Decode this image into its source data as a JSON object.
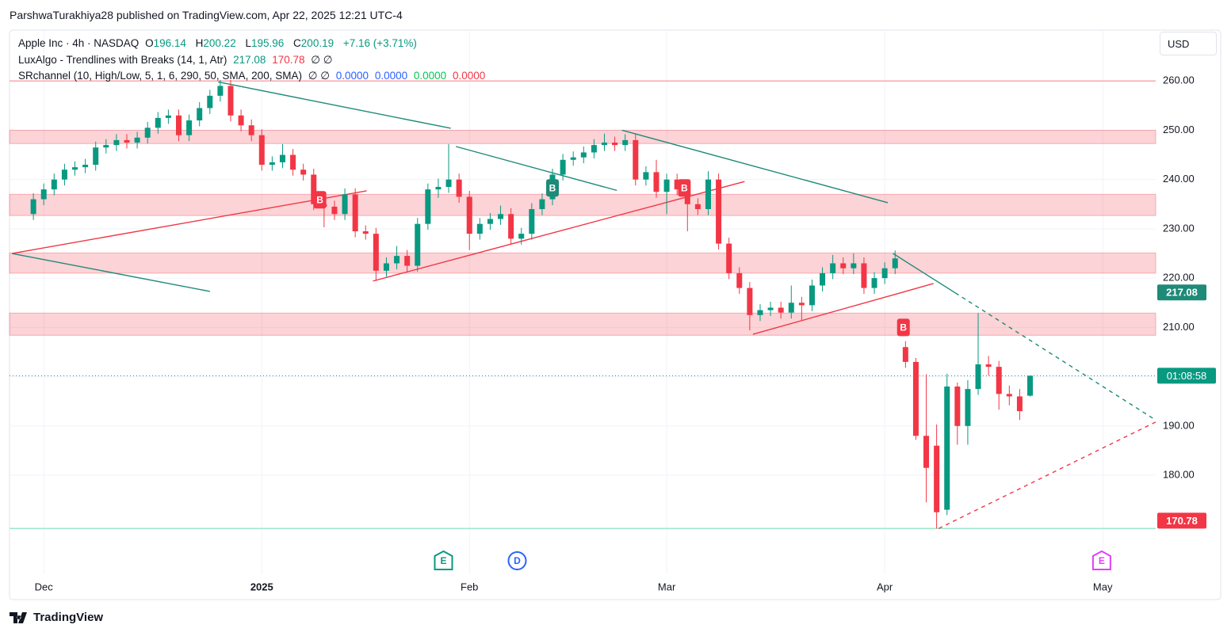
{
  "header": {
    "published": "ParshwaTurakhiya28 published on TradingView.com, Apr 22, 2025 12:21 UTC-4",
    "brand": "TradingView",
    "currency": "USD"
  },
  "legend": {
    "symbol": "Apple Inc · 4h · NASDAQ",
    "keys": [
      "O",
      "H",
      "L",
      "C"
    ],
    "change": "+7.16 (+3.71%)",
    "lux_name": "LuxAlgo - Trendlines with Breaks (14, 1, Atr)",
    "lux_na": "∅ ∅",
    "sr_name": "SRchannel (10, High/Low, 5, 1, 6, 290, 50, SMA, 200, SMA)",
    "sr_na": "∅ ∅",
    "sr_values": [
      "0.0000",
      "0.0000",
      "0.0000",
      "0.0000"
    ]
  },
  "chart_data": {
    "type": "candlestick",
    "up_color": "#089981",
    "down_color": "#f23645",
    "xlim": [
      -2.3,
      108.1
    ],
    "ylim": [
      160,
      270
    ],
    "grid": true,
    "xticks": [
      {
        "value": 1,
        "label": "Dec"
      },
      {
        "value": 22,
        "label": "2025"
      },
      {
        "value": 42,
        "label": "Feb"
      },
      {
        "value": 61,
        "label": "Mar"
      },
      {
        "value": 82,
        "label": "Apr"
      },
      {
        "value": 103,
        "label": "May"
      }
    ],
    "yticks": [
      {
        "value": 180,
        "label": "180.00"
      },
      {
        "value": 190,
        "label": "190.00"
      },
      {
        "value": 200,
        "label": "200.00"
      },
      {
        "value": 210,
        "label": "210.00"
      },
      {
        "value": 220,
        "label": "220.00"
      },
      {
        "value": 230,
        "label": "230.00"
      },
      {
        "value": 240,
        "label": "240.00"
      },
      {
        "value": 250,
        "label": "250.00"
      },
      {
        "value": 260,
        "label": "260.00"
      }
    ],
    "ohlc": {
      "open": [
        233,
        236,
        238,
        240,
        242,
        242.5,
        243,
        246.5,
        247,
        248,
        247.5,
        248.5,
        250.5,
        252.5,
        253,
        249,
        252,
        254.5,
        257,
        259,
        253,
        251,
        249,
        243,
        243.5,
        245,
        242,
        241,
        235,
        234.5,
        233,
        237,
        229.5,
        229,
        221.5,
        223,
        224.5,
        222.5,
        231,
        238,
        238.5,
        240,
        236.5,
        229,
        231,
        232,
        233,
        228,
        229,
        234,
        236,
        241,
        244,
        244.5,
        245.5,
        247,
        247.5,
        247,
        248,
        240,
        241.5,
        237.5,
        240,
        238,
        235,
        234,
        240,
        227,
        221,
        218,
        212.5,
        213.5,
        214,
        213,
        215,
        214.5,
        218.5,
        221,
        223,
        222,
        223,
        218,
        220,
        222,
        206,
        203,
        188,
        186,
        173,
        198,
        190,
        197.5,
        202.5,
        202,
        196.5,
        196,
        196.14
      ],
      "high": [
        237.2,
        239.2,
        241.2,
        243.2,
        243.7,
        244.2,
        247.7,
        248.2,
        249.2,
        249.2,
        249.7,
        251.7,
        253.7,
        254.2,
        254.2,
        253.2,
        255.7,
        258.2,
        260.2,
        260.2,
        254.2,
        252.2,
        250.2,
        244.7,
        247.2,
        246.2,
        243.2,
        242.2,
        236.2,
        235.7,
        238.2,
        238.2,
        230.7,
        230.2,
        224.2,
        226.5,
        225.7,
        232.2,
        239.2,
        240.2,
        247.2,
        241.2,
        237.7,
        232.2,
        233.2,
        234.7,
        234.2,
        230.2,
        235.2,
        237.2,
        242.2,
        245.2,
        245.7,
        246.7,
        248.2,
        249.3,
        248.7,
        249.2,
        249.2,
        242.7,
        244,
        241.2,
        241.2,
        239.2,
        236.2,
        241.7,
        241.2,
        228.2,
        222.2,
        219.2,
        214.7,
        215.2,
        215.2,
        218.5,
        216.2,
        219.7,
        222.2,
        224.7,
        224.2,
        225,
        224.2,
        221.2,
        223.2,
        225.6,
        207.2,
        203.8,
        200.5,
        190.3,
        200.6,
        198.8,
        199.3,
        212.9,
        204.2,
        203.2,
        198.2,
        197.5,
        200.22
      ],
      "low": [
        231.8,
        234.8,
        236.8,
        238.8,
        240.8,
        241.3,
        241.8,
        245.3,
        245.8,
        246.3,
        246.3,
        247.3,
        249.3,
        251.3,
        247.8,
        247.8,
        250.8,
        253.3,
        255.8,
        251.8,
        249.8,
        247.8,
        241.8,
        241.8,
        242.3,
        240.8,
        239.8,
        233.8,
        230.3,
        231.8,
        231.8,
        228.3,
        227.8,
        219.4,
        220.3,
        221.8,
        221.3,
        221.3,
        229.8,
        236.3,
        237.3,
        235.3,
        225.7,
        227.8,
        229.8,
        230.8,
        226.8,
        226.8,
        227.8,
        232.8,
        234.8,
        239.8,
        242.8,
        243.3,
        244.3,
        245.8,
        245.8,
        245.8,
        238.8,
        238.8,
        236.3,
        233,
        236.8,
        229.5,
        232.8,
        232.8,
        225.8,
        219.8,
        216.8,
        209.4,
        211.3,
        212.3,
        211.8,
        211.8,
        211.5,
        213.3,
        217.3,
        219.8,
        220.8,
        220.8,
        216.8,
        216.8,
        218.8,
        220.8,
        201.8,
        187.2,
        174.5,
        169.2,
        171.9,
        186.2,
        186.2,
        196.3,
        200.2,
        193.3,
        194.2,
        191.2,
        195.96
      ],
      "close": [
        236,
        238,
        240,
        242,
        242.5,
        243,
        246.5,
        247,
        248,
        247.5,
        248.5,
        250.5,
        252.5,
        253,
        249,
        252,
        254.5,
        257,
        259,
        253,
        251,
        249,
        243,
        243.5,
        245,
        242,
        241,
        235,
        234.5,
        233,
        237,
        229.5,
        229,
        221.5,
        223,
        224.5,
        222.5,
        231,
        238,
        238.5,
        240,
        236.5,
        229,
        231,
        232,
        233,
        228,
        229,
        234,
        236,
        241,
        244,
        244.5,
        245.5,
        247,
        247.5,
        247,
        248,
        240,
        241.5,
        237.5,
        240,
        238,
        235,
        234,
        240,
        227,
        221,
        218,
        212.5,
        213.5,
        214,
        213,
        215,
        214.5,
        218.5,
        221,
        223,
        222,
        223,
        218,
        220,
        222,
        224,
        203,
        188,
        181.5,
        172.5,
        198,
        190,
        197.5,
        202.5,
        202,
        196.5,
        196,
        193,
        200.19
      ]
    },
    "lux_upper": 217.08,
    "lux_lower": 170.78,
    "countdown": "01:08:58",
    "sr_zones": [
      [
        247.3,
        250
      ],
      [
        232.7,
        237
      ],
      [
        221,
        225.1
      ],
      [
        208.4,
        212.9
      ]
    ],
    "levels": [
      {
        "value": 260,
        "color": "#f7a8ae"
      },
      {
        "value": 169.2,
        "color": "#9be8cc"
      }
    ],
    "trendlines": [
      {
        "x": [
          -2.06,
          17.0
        ],
        "y": [
          225,
          217.3
        ],
        "color": "#1e8a78",
        "dashed": false
      },
      {
        "x": [
          17.8,
          40.2
        ],
        "y": [
          259.8,
          250.4
        ],
        "color": "#1e8a78",
        "dashed": false
      },
      {
        "x": [
          40.7,
          56.2
        ],
        "y": [
          246.7,
          237.8
        ],
        "color": "#1e8a78",
        "dashed": false
      },
      {
        "x": [
          56.7,
          82.3
        ],
        "y": [
          250,
          235.3
        ],
        "color": "#1e8a78",
        "dashed": false
      },
      {
        "x": [
          82.8,
          88.8
        ],
        "y": [
          225,
          217
        ],
        "color": "#1e8a78",
        "dashed": false
      },
      {
        "x": [
          88.8,
          108.1
        ],
        "y": [
          217,
          191.2
        ],
        "color": "#1e8a78",
        "dashed": true
      },
      {
        "x": [
          -2.06,
          32.1
        ],
        "y": [
          225,
          237.7
        ],
        "color": "#f23645",
        "dashed": false
      },
      {
        "x": [
          32.7,
          68.5
        ],
        "y": [
          219.4,
          239.6
        ],
        "color": "#f23645",
        "dashed": false
      },
      {
        "x": [
          69.3,
          86.7
        ],
        "y": [
          208.6,
          218.9
        ],
        "color": "#f23645",
        "dashed": false
      },
      {
        "x": [
          87.2,
          108.1
        ],
        "y": [
          169.2,
          190.8
        ],
        "color": "#f23645",
        "dashed": true
      }
    ],
    "markers": [
      {
        "text": "B",
        "x": 27.6,
        "y": 235.9,
        "color": "#f23645"
      },
      {
        "text": "B",
        "x": 50.0,
        "y": 238.3,
        "color": "#1e8a78"
      },
      {
        "text": "B",
        "x": 62.7,
        "y": 238.3,
        "color": "#f23645"
      },
      {
        "text": "B",
        "x": 83.8,
        "y": 210.0,
        "color": "#f23645"
      }
    ],
    "events": [
      {
        "text": "E",
        "x": 39.5,
        "color": "#089981",
        "shape": "square"
      },
      {
        "text": "D",
        "x": 46.6,
        "color": "#2962ff",
        "shape": "circle"
      },
      {
        "text": "E",
        "x": 102.9,
        "color": "#e040fb",
        "shape": "square"
      }
    ]
  }
}
